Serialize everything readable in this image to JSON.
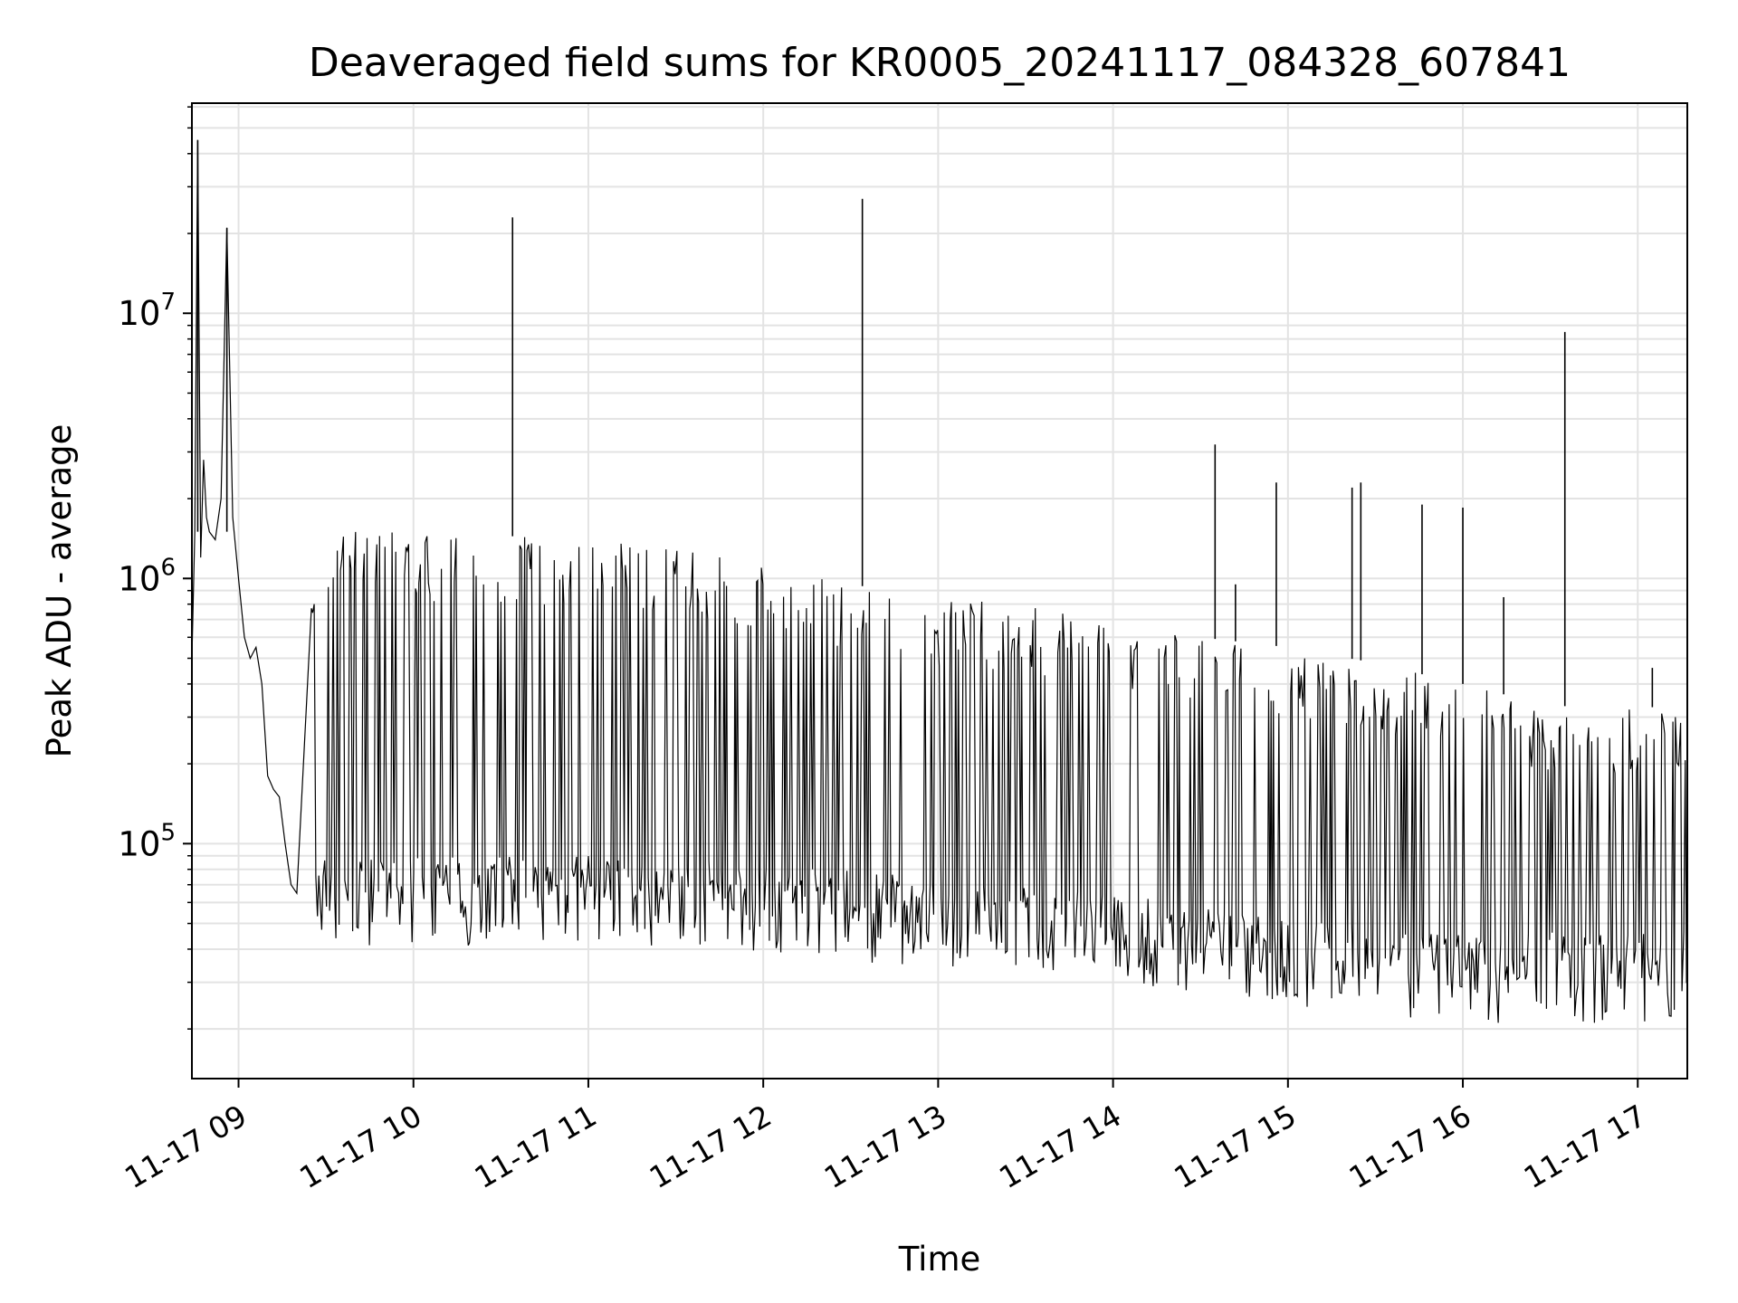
{
  "chart_data": {
    "type": "line",
    "title": "Deaveraged field sums for KR0005_20241117_084328_607841",
    "xlabel": "Time",
    "ylabel": "Peak ADU - average",
    "yscale": "log",
    "ylim": [
      13000,
      62000000
    ],
    "xlim": [
      "2024-11-17 08:44",
      "2024-11-17 17:17"
    ],
    "grid": true,
    "line_color": "#000000",
    "x_ticks": [
      {
        "t": "2024-11-17 09:00",
        "label": "11-17 09"
      },
      {
        "t": "2024-11-17 10:00",
        "label": "11-17 10"
      },
      {
        "t": "2024-11-17 11:00",
        "label": "11-17 11"
      },
      {
        "t": "2024-11-17 12:00",
        "label": "11-17 12"
      },
      {
        "t": "2024-11-17 13:00",
        "label": "11-17 13"
      },
      {
        "t": "2024-11-17 14:00",
        "label": "11-17 14"
      },
      {
        "t": "2024-11-17 15:00",
        "label": "11-17 15"
      },
      {
        "t": "2024-11-17 16:00",
        "label": "11-17 16"
      },
      {
        "t": "2024-11-17 17:00",
        "label": "11-17 17"
      }
    ],
    "y_ticks": [
      {
        "value": 100000,
        "base": "10",
        "exp": "5"
      },
      {
        "value": 1000000,
        "base": "10",
        "exp": "6"
      },
      {
        "value": 10000000,
        "base": "10",
        "exp": "7"
      }
    ],
    "series": [
      {
        "x": [
          "2024-11-17 08:44",
          "2024-11-17 08:45",
          "2024-11-17 08:46",
          "2024-11-17 08:47",
          "2024-11-17 08:48",
          "2024-11-17 08:49",
          "2024-11-17 08:50",
          "2024-11-17 08:52",
          "2024-11-17 08:54",
          "2024-11-17 08:56",
          "2024-11-17 08:58",
          "2024-11-17 09:00",
          "2024-11-17 09:02",
          "2024-11-17 09:04",
          "2024-11-17 09:06",
          "2024-11-17 09:08",
          "2024-11-17 09:10",
          "2024-11-17 09:12",
          "2024-11-17 09:14",
          "2024-11-17 09:16",
          "2024-11-17 09:18",
          "2024-11-17 09:20",
          "2024-11-17 09:30",
          "2024-11-17 09:50",
          "2024-11-17 10:15",
          "2024-11-17 10:34",
          "2024-11-17 10:35",
          "2024-11-17 10:36",
          "2024-11-17 11:00",
          "2024-11-17 11:30",
          "2024-11-17 12:00",
          "2024-11-17 12:33",
          "2024-11-17 12:34",
          "2024-11-17 12:35",
          "2024-11-17 13:00",
          "2024-11-17 13:30",
          "2024-11-17 14:00",
          "2024-11-17 14:34",
          "2024-11-17 14:35",
          "2024-11-17 14:36",
          "2024-11-17 15:00",
          "2024-11-17 15:30",
          "2024-11-17 16:00",
          "2024-11-17 16:34",
          "2024-11-17 16:35",
          "2024-11-17 16:36",
          "2024-11-17 17:00",
          "2024-11-17 17:17"
        ],
        "y": [
          500000,
          1500000,
          45000000,
          1200000,
          2800000,
          1700000,
          1500000,
          1400000,
          2000000,
          21000000,
          1700000,
          1000000,
          600000,
          500000,
          550000,
          400000,
          180000,
          160000,
          150000,
          100000,
          70000,
          65000,
          68000,
          70000,
          70000,
          75000,
          23000000,
          75000,
          75000,
          75000,
          68000,
          65000,
          27000000,
          65000,
          62000,
          60000,
          55000,
          3200000,
          55000,
          45000,
          40000,
          38000,
          35000,
          8500000,
          35000,
          35000,
          38000,
          40000
        ]
      }
    ],
    "envelope": {
      "x": [
        "2024-11-17 09:25",
        "2024-11-17 09:30",
        "2024-11-17 10:00",
        "2024-11-17 10:30",
        "2024-11-17 11:00",
        "2024-11-17 11:30",
        "2024-11-17 12:00",
        "2024-11-17 12:30",
        "2024-11-17 13:00",
        "2024-11-17 13:30",
        "2024-11-17 14:00",
        "2024-11-17 14:30",
        "2024-11-17 15:00",
        "2024-11-17 15:30",
        "2024-11-17 16:00",
        "2024-11-17 16:30",
        "2024-11-17 17:00",
        "2024-11-17 17:17"
      ],
      "high": [
        800000,
        1500000,
        1500000,
        1450000,
        1400000,
        1300000,
        1150000,
        950000,
        850000,
        800000,
        700000,
        600000,
        550000,
        480000,
        400000,
        330000,
        330000,
        320000
      ],
      "low": [
        55000,
        55000,
        55000,
        55000,
        55000,
        55000,
        50000,
        48000,
        45000,
        42000,
        40000,
        35000,
        32000,
        30000,
        28000,
        28000,
        28000,
        30000
      ]
    },
    "spikes": [
      {
        "x": "2024-11-17 10:34",
        "y": 23000000
      },
      {
        "x": "2024-11-17 12:34",
        "y": 27000000
      },
      {
        "x": "2024-11-17 14:35",
        "y": 3200000
      },
      {
        "x": "2024-11-17 14:42",
        "y": 950000
      },
      {
        "x": "2024-11-17 14:56",
        "y": 2300000
      },
      {
        "x": "2024-11-17 15:22",
        "y": 2200000
      },
      {
        "x": "2024-11-17 15:25",
        "y": 2300000
      },
      {
        "x": "2024-11-17 15:46",
        "y": 1900000
      },
      {
        "x": "2024-11-17 16:00",
        "y": 1850000
      },
      {
        "x": "2024-11-17 16:14",
        "y": 850000
      },
      {
        "x": "2024-11-17 16:35",
        "y": 8500000
      },
      {
        "x": "2024-11-17 17:05",
        "y": 460000
      }
    ]
  }
}
